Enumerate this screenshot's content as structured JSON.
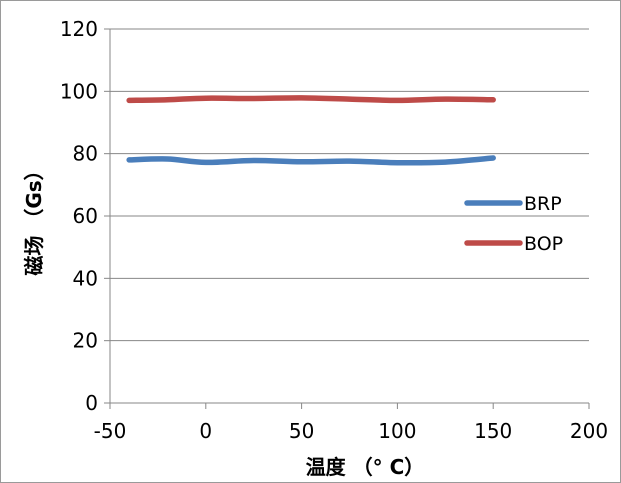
{
  "chart_data": {
    "type": "line",
    "xlabel": "温度 （° C）",
    "ylabel": "磁场 （Gs）",
    "xlim": [
      -50,
      200
    ],
    "ylim": [
      0,
      120
    ],
    "xticks": [
      -50,
      0,
      50,
      100,
      150,
      200
    ],
    "yticks": [
      0,
      20,
      40,
      60,
      80,
      100,
      120
    ],
    "grid": "horizontal",
    "legend_position": "right",
    "series": [
      {
        "name": "BRP",
        "color": "#4a7ebb",
        "x": [
          -40,
          -20,
          0,
          25,
          50,
          75,
          100,
          125,
          150
        ],
        "y": [
          78,
          78.3,
          77.2,
          77.8,
          77.4,
          77.6,
          77.1,
          77.3,
          78.6
        ]
      },
      {
        "name": "BOP",
        "color": "#be4b48",
        "x": [
          -40,
          -20,
          0,
          25,
          50,
          75,
          100,
          125,
          150
        ],
        "y": [
          97.1,
          97.3,
          97.8,
          97.7,
          97.9,
          97.5,
          97.1,
          97.5,
          97.3
        ]
      }
    ]
  }
}
